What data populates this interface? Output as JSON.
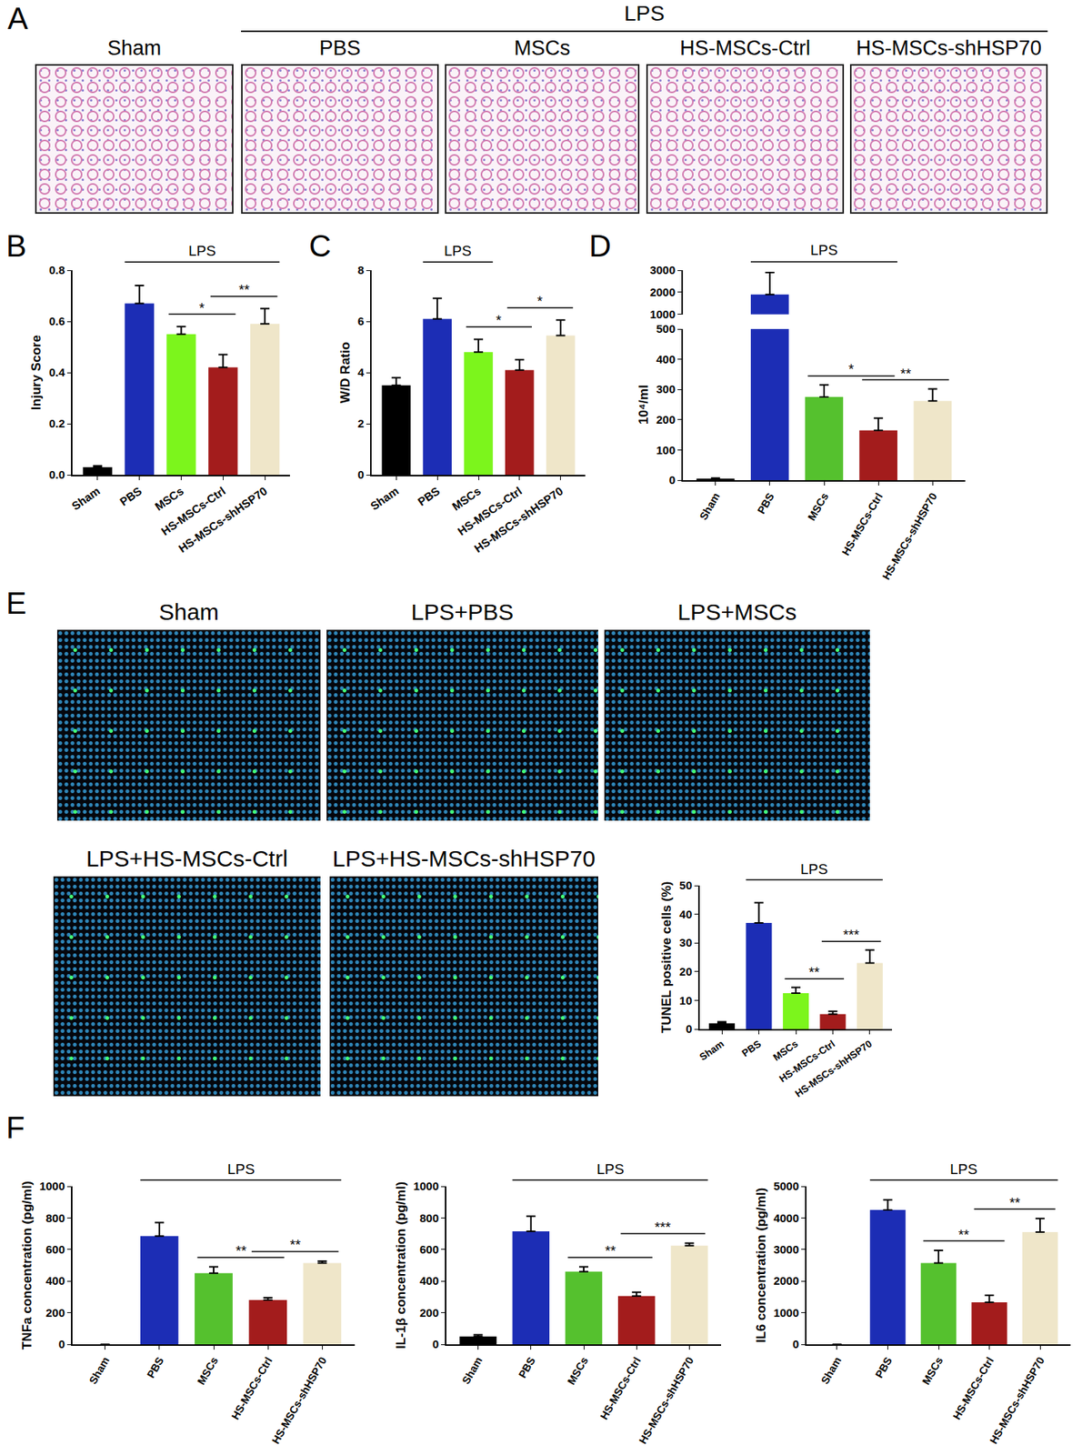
{
  "image_panels": [
    {
      "panel": "A",
      "group_label": "LPS",
      "titles": [
        "Sham",
        "PBS",
        "MSCs",
        "HS-MSCs-Ctrl",
        "HS-MSCs-shHSP70"
      ]
    },
    {
      "panel": "E",
      "titles": [
        "Sham",
        "LPS+PBS",
        "LPS+MSCs",
        "LPS+HS-MSCs-Ctrl",
        "LPS+HS-MSCs-shHSP70"
      ]
    }
  ],
  "chart_data": [
    {
      "panel": "B",
      "type": "bar",
      "categories": [
        "Sham",
        "PBS",
        "MSCs",
        "HS-MSCs-Ctrl",
        "HS-MSCs-shHSP70"
      ],
      "values": [
        0.03,
        0.67,
        0.55,
        0.42,
        0.59
      ],
      "errors": [
        0.005,
        0.07,
        0.03,
        0.05,
        0.06
      ],
      "colors": [
        "#000000",
        "#1c2db5",
        "#7cf51c",
        "#a31c1c",
        "#efe6c9"
      ],
      "ylabel": "Injury Score",
      "ylim": [
        0,
        0.8
      ],
      "yticks": [
        {
          "value": 0,
          "label": "0.0"
        },
        0.2,
        0.4,
        0.6,
        0.8
      ],
      "group_label": "LPS",
      "group_span": [
        "PBS",
        "HS-MSCs-shHSP70"
      ],
      "significance": [
        {
          "from": "MSCs",
          "to": "HS-MSCs-Ctrl",
          "label": "*"
        },
        {
          "from": "HS-MSCs-Ctrl",
          "to": "HS-MSCs-shHSP70",
          "label": "**"
        }
      ]
    },
    {
      "panel": "C",
      "type": "bar",
      "categories": [
        "Sham",
        "PBS",
        "MSCs",
        "HS-MSCs-Ctrl",
        "HS-MSCs-shHSP70"
      ],
      "values": [
        3.5,
        6.1,
        4.8,
        4.1,
        5.45
      ],
      "errors": [
        0.3,
        0.8,
        0.5,
        0.4,
        0.6
      ],
      "colors": [
        "#000000",
        "#1c2db5",
        "#7cf51c",
        "#a31c1c",
        "#efe6c9"
      ],
      "ylabel": "W/D Ratio",
      "ylim": [
        0,
        8
      ],
      "yticks": [
        0,
        2,
        4,
        6,
        8
      ],
      "group_label": "LPS",
      "group_span": [
        "PBS",
        "MSCs"
      ],
      "significance": [
        {
          "from": "MSCs",
          "to": "HS-MSCs-Ctrl",
          "label": "*"
        },
        {
          "from": "HS-MSCs-Ctrl",
          "to": "HS-MSCs-shHSP70",
          "label": "*"
        }
      ]
    },
    {
      "panel": "D",
      "type": "bar",
      "categories": [
        "Sham",
        "PBS",
        "MSCs",
        "HS-MSCs-Ctrl",
        "HS-MSCs-shHSP70"
      ],
      "values": [
        5,
        1900,
        275,
        165,
        262
      ],
      "errors": [
        2,
        1000,
        40,
        40,
        40
      ],
      "colors": [
        "#000000",
        "#1c2db5",
        "#55c12e",
        "#a31c1c",
        "#efe6c9"
      ],
      "ylabel": "10⁴/ml",
      "segments": [
        {
          "ylim": [
            0,
            500
          ],
          "yticks": [
            0,
            100,
            200,
            300,
            400,
            500
          ]
        },
        {
          "ylim": [
            1000,
            3000
          ],
          "yticks": [
            1000,
            2000,
            3000
          ]
        }
      ],
      "group_label": "LPS",
      "group_span": [
        "PBS",
        "HS-MSCs-Ctrl"
      ],
      "significance": [
        {
          "from": "MSCs",
          "to": "HS-MSCs-Ctrl",
          "label": "*"
        },
        {
          "from": "HS-MSCs-Ctrl",
          "to": "HS-MSCs-shHSP70",
          "label": "**"
        }
      ]
    },
    {
      "type": "bar",
      "categories": [
        "Sham",
        "PBS",
        "MSCs",
        "HS-MSCs-Ctrl",
        "HS-MSCs-shHSP70"
      ],
      "values": [
        2,
        37,
        12.5,
        5.2,
        23
      ],
      "errors": [
        0.5,
        7,
        2,
        1,
        4.5
      ],
      "colors": [
        "#000000",
        "#1c2db5",
        "#7cf51c",
        "#a31c1c",
        "#efe6c9"
      ],
      "ylabel": "TUNEL positive cells (%)",
      "ylim": [
        0,
        50
      ],
      "yticks": [
        0,
        10,
        20,
        30,
        40,
        50
      ],
      "group_label": "LPS",
      "group_span": [
        "PBS",
        "HS-MSCs-shHSP70"
      ],
      "significance": [
        {
          "from": "MSCs",
          "to": "HS-MSCs-Ctrl",
          "label": "**"
        },
        {
          "from": "HS-MSCs-Ctrl",
          "to": "HS-MSCs-shHSP70",
          "label": "***"
        }
      ]
    },
    {
      "panel": "F",
      "type": "bar",
      "categories": [
        "Sham",
        "PBS",
        "MSCs",
        "HS-MSCs-Ctrl",
        "HS-MSCs-shHSP70"
      ],
      "values": [
        0,
        685,
        450,
        280,
        515
      ],
      "errors": [
        0,
        85,
        40,
        15,
        12
      ],
      "colors": [
        "#000000",
        "#1c2db5",
        "#55c12e",
        "#a31c1c",
        "#efe6c9"
      ],
      "ylabel": "TNFa concentration (pg/ml)",
      "ylim": [
        0,
        1000
      ],
      "yticks": [
        0,
        200,
        400,
        600,
        800,
        1000
      ],
      "group_label": "LPS",
      "group_span": [
        "PBS",
        "HS-MSCs-shHSP70"
      ],
      "significance": [
        {
          "from": "MSCs",
          "to": "HS-MSCs-Ctrl",
          "label": "**"
        },
        {
          "from": "HS-MSCs-Ctrl",
          "to": "HS-MSCs-shHSP70",
          "label": "**"
        }
      ]
    },
    {
      "type": "bar",
      "categories": [
        "Sham",
        "PBS",
        "MSCs",
        "HS-MSCs-Ctrl",
        "HS-MSCs-shHSP70"
      ],
      "values": [
        50,
        715,
        460,
        305,
        625
      ],
      "errors": [
        10,
        95,
        30,
        25,
        15
      ],
      "colors": [
        "#000000",
        "#1c2db5",
        "#55c12e",
        "#a31c1c",
        "#efe6c9"
      ],
      "ylabel": "IL-1β concentration (pg/ml)",
      "ylim": [
        0,
        1000
      ],
      "yticks": [
        0,
        200,
        400,
        600,
        800,
        1000
      ],
      "group_label": "LPS",
      "group_span": [
        "PBS",
        "HS-MSCs-shHSP70"
      ],
      "significance": [
        {
          "from": "MSCs",
          "to": "HS-MSCs-Ctrl",
          "label": "**"
        },
        {
          "from": "HS-MSCs-Ctrl",
          "to": "HS-MSCs-shHSP70",
          "label": "***"
        }
      ]
    },
    {
      "type": "bar",
      "categories": [
        "Sham",
        "PBS",
        "MSCs",
        "HS-MSCs-Ctrl",
        "HS-MSCs-shHSP70"
      ],
      "values": [
        0,
        4250,
        2570,
        1330,
        3550
      ],
      "errors": [
        0,
        320,
        400,
        220,
        430
      ],
      "colors": [
        "#000000",
        "#1c2db5",
        "#55c12e",
        "#a31c1c",
        "#efe6c9"
      ],
      "ylabel": "IL6 concentration (pg/ml)",
      "ylim": [
        0,
        5000
      ],
      "yticks": [
        0,
        1000,
        2000,
        3000,
        4000,
        5000
      ],
      "group_label": "LPS",
      "group_span": [
        "PBS",
        "HS-MSCs-shHSP70"
      ],
      "significance": [
        {
          "from": "MSCs",
          "to": "HS-MSCs-Ctrl",
          "label": "**"
        },
        {
          "from": "HS-MSCs-Ctrl",
          "to": "HS-MSCs-shHSP70",
          "label": "**"
        }
      ]
    }
  ]
}
